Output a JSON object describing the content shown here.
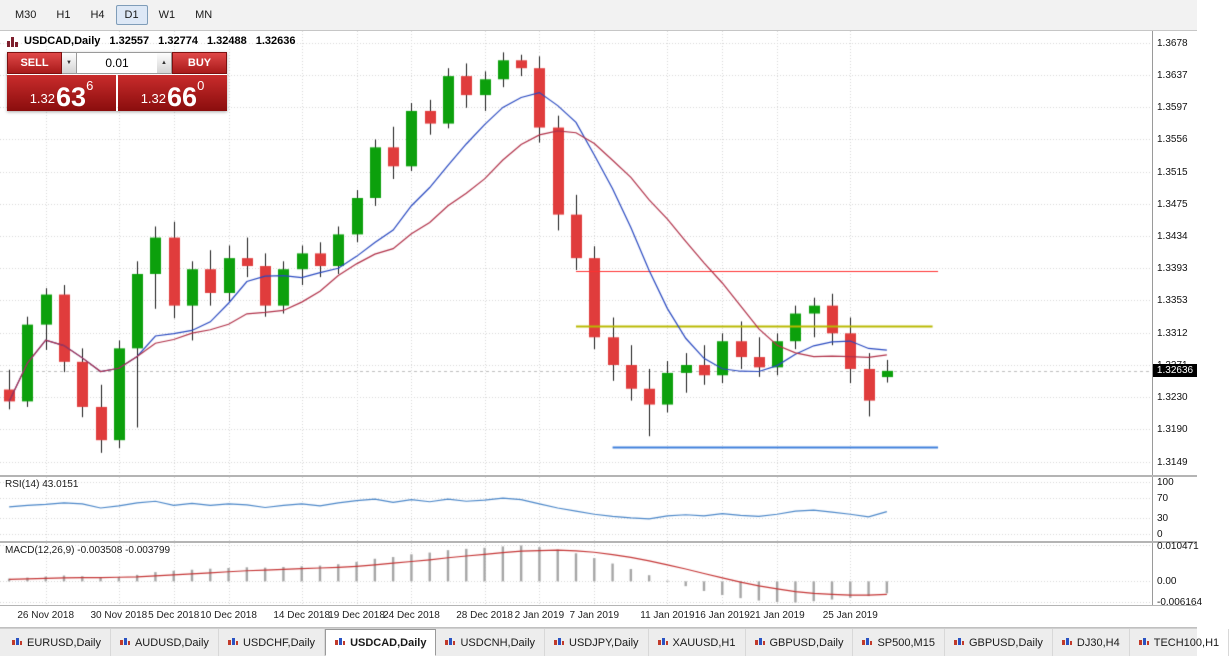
{
  "toolbar": {
    "timeframes": [
      "M30",
      "H1",
      "H4",
      "D1",
      "W1",
      "MN"
    ],
    "active": "D1"
  },
  "chart": {
    "symbol_title": "USDCAD,Daily",
    "ohlc": {
      "open": "1.32557",
      "high": "1.32774",
      "low": "1.32488",
      "close": "1.32636"
    },
    "trade_panel": {
      "sell_label": "SELL",
      "buy_label": "BUY",
      "volume": "0.01",
      "bid": {
        "prefix": "1.32",
        "pips": "63",
        "point": "6"
      },
      "ask": {
        "prefix": "1.32",
        "pips": "66",
        "point": "0"
      }
    }
  },
  "chart_data": {
    "type": "candlestick",
    "symbol": "USDCAD",
    "timeframe": "Daily",
    "right_gap_slots": 14,
    "current_price": 1.32636,
    "current_price_str": "1.32636",
    "colors": {
      "up": "#0ca00c",
      "down": "#e03c3c",
      "wick": "#1a1a1a",
      "grid": "#d6d6d6",
      "macd_hist": "#a6a6a6",
      "macd_signal": "#c43434"
    },
    "price_axis": {
      "max": 1.3693,
      "min": 1.3132,
      "ticks": [
        "1.3678",
        "1.3637",
        "1.3597",
        "1.3556",
        "1.3515",
        "1.3475",
        "1.3434",
        "1.3393",
        "1.3353",
        "1.3312",
        "1.3271",
        "1.3230",
        "1.3190",
        "1.3149"
      ]
    },
    "date_labels": [
      {
        "label": "26 Nov 2018",
        "index": 2
      },
      {
        "label": "30 Nov 2018",
        "index": 6
      },
      {
        "label": "5 Dec 2018",
        "index": 9
      },
      {
        "label": "10 Dec 2018",
        "index": 12
      },
      {
        "label": "14 Dec 2018",
        "index": 16
      },
      {
        "label": "19 Dec 2018",
        "index": 19
      },
      {
        "label": "24 Dec 2018",
        "index": 22
      },
      {
        "label": "28 Dec 2018",
        "index": 26
      },
      {
        "label": "2 Jan 2019",
        "index": 29
      },
      {
        "label": "7 Jan 2019",
        "index": 32
      },
      {
        "label": "11 Jan 2019",
        "index": 36
      },
      {
        "label": "16 Jan 2019",
        "index": 39
      },
      {
        "label": "21 Jan 2019",
        "index": 42
      },
      {
        "label": "25 Jan 2019",
        "index": 46
      }
    ],
    "candles": [
      [
        1.324,
        1.3265,
        1.3215,
        1.3225
      ],
      [
        1.3225,
        1.3332,
        1.3218,
        1.3322
      ],
      [
        1.3322,
        1.3368,
        1.329,
        1.336
      ],
      [
        1.336,
        1.3372,
        1.3262,
        1.3275
      ],
      [
        1.3275,
        1.3292,
        1.3205,
        1.3218
      ],
      [
        1.3218,
        1.3246,
        1.316,
        1.3176
      ],
      [
        1.3176,
        1.3302,
        1.3166,
        1.3292
      ],
      [
        1.3292,
        1.3402,
        1.3192,
        1.3386
      ],
      [
        1.3386,
        1.3446,
        1.3342,
        1.3432
      ],
      [
        1.3432,
        1.3452,
        1.333,
        1.3346
      ],
      [
        1.3346,
        1.3402,
        1.3302,
        1.3392
      ],
      [
        1.3392,
        1.3416,
        1.3346,
        1.3362
      ],
      [
        1.3362,
        1.3422,
        1.3352,
        1.3406
      ],
      [
        1.3406,
        1.3432,
        1.3382,
        1.3396
      ],
      [
        1.3396,
        1.3412,
        1.3332,
        1.3346
      ],
      [
        1.3346,
        1.3402,
        1.3336,
        1.3392
      ],
      [
        1.3392,
        1.3422,
        1.3372,
        1.3412
      ],
      [
        1.3412,
        1.3426,
        1.3382,
        1.3396
      ],
      [
        1.3396,
        1.3446,
        1.3386,
        1.3436
      ],
      [
        1.3436,
        1.3492,
        1.3426,
        1.3482
      ],
      [
        1.3482,
        1.3556,
        1.3472,
        1.3546
      ],
      [
        1.3546,
        1.3572,
        1.3506,
        1.3522
      ],
      [
        1.3522,
        1.3602,
        1.3516,
        1.3592
      ],
      [
        1.3592,
        1.3606,
        1.3562,
        1.3576
      ],
      [
        1.3576,
        1.3646,
        1.357,
        1.3636
      ],
      [
        1.3636,
        1.3652,
        1.3596,
        1.3612
      ],
      [
        1.3612,
        1.3642,
        1.3592,
        1.3632
      ],
      [
        1.3632,
        1.3666,
        1.3622,
        1.3656
      ],
      [
        1.3656,
        1.3663,
        1.3636,
        1.3646
      ],
      [
        1.3646,
        1.3661,
        1.3552,
        1.3571
      ],
      [
        1.3571,
        1.3586,
        1.3441,
        1.3461
      ],
      [
        1.3461,
        1.3486,
        1.3391,
        1.3406
      ],
      [
        1.3406,
        1.3421,
        1.3291,
        1.3306
      ],
      [
        1.3306,
        1.3331,
        1.3251,
        1.3271
      ],
      [
        1.3271,
        1.3296,
        1.3226,
        1.3241
      ],
      [
        1.3241,
        1.3266,
        1.3181,
        1.3221
      ],
      [
        1.3221,
        1.3276,
        1.3211,
        1.3261
      ],
      [
        1.3261,
        1.3286,
        1.3236,
        1.3271
      ],
      [
        1.3271,
        1.3296,
        1.3246,
        1.3258
      ],
      [
        1.3258,
        1.3311,
        1.3248,
        1.3301
      ],
      [
        1.3301,
        1.3326,
        1.3266,
        1.3281
      ],
      [
        1.3281,
        1.3306,
        1.3256,
        1.3268
      ],
      [
        1.3268,
        1.3311,
        1.3258,
        1.3301
      ],
      [
        1.3301,
        1.3346,
        1.3291,
        1.3336
      ],
      [
        1.3336,
        1.3356,
        1.3306,
        1.3346
      ],
      [
        1.3346,
        1.3361,
        1.3296,
        1.3311
      ],
      [
        1.3311,
        1.3331,
        1.3248,
        1.3266
      ],
      [
        1.3266,
        1.3286,
        1.3206,
        1.3226
      ],
      [
        1.32557,
        1.32774,
        1.32488,
        1.32636
      ]
    ],
    "overlays": {
      "ma_fast": {
        "period": 8,
        "color": "#2848c0"
      },
      "ma_slow": {
        "period": 13,
        "color": "#b03048"
      }
    },
    "hlines": [
      {
        "price": 1.339,
        "color": "#ff3030",
        "from": 31,
        "to": 50.8,
        "width": 1
      },
      {
        "price": 1.332,
        "color": "#b8b800",
        "from": 31,
        "to": 50.5,
        "width": 2
      },
      {
        "price": 1.3168,
        "color": "#3d7edb",
        "from": 33,
        "to": 50.8,
        "width": 2
      }
    ],
    "rsi": {
      "label": "RSI(14) 43.0151",
      "period": 14,
      "value": 43.0151,
      "color": "#4a86c8",
      "levels": [
        100,
        70,
        30,
        0
      ],
      "values": [
        52,
        55,
        57,
        60,
        58,
        50,
        54,
        60,
        63,
        55,
        59,
        55,
        58,
        56,
        51,
        55,
        58,
        54,
        60,
        64,
        67,
        61,
        66,
        62,
        67,
        63,
        65,
        69,
        66,
        58,
        50,
        44,
        38,
        34,
        31,
        29,
        35,
        37,
        35,
        39,
        36,
        34,
        38,
        44,
        46,
        42,
        38,
        33,
        43
      ]
    },
    "macd": {
      "label": "MACD(12,26,9) -0.003508 -0.003799",
      "macd_value": -0.003508,
      "signal_value": -0.003799,
      "axis": [
        "0.010471",
        "0.00",
        "-0.006164"
      ],
      "scale_max": 0.0112,
      "scale_min": -0.0069,
      "hist": [
        0.0008,
        0.0011,
        0.0014,
        0.0017,
        0.0015,
        0.0011,
        0.0013,
        0.0019,
        0.0027,
        0.0031,
        0.0034,
        0.0037,
        0.0039,
        0.0041,
        0.004,
        0.0042,
        0.0044,
        0.0046,
        0.005,
        0.0057,
        0.0066,
        0.0071,
        0.0079,
        0.0084,
        0.0091,
        0.0095,
        0.0098,
        0.0102,
        0.010471,
        0.01,
        0.0093,
        0.0082,
        0.0068,
        0.0052,
        0.0036,
        0.0018,
        0.0002,
        -0.0014,
        -0.0028,
        -0.004,
        -0.0049,
        -0.0056,
        -0.006,
        -0.006164,
        -0.0058,
        -0.0053,
        -0.0048,
        -0.0043,
        -0.003508
      ],
      "signal": [
        0.0006,
        0.0007,
        0.0009,
        0.001,
        0.0011,
        0.0011,
        0.0012,
        0.0013,
        0.0016,
        0.0019,
        0.0022,
        0.0025,
        0.0028,
        0.0031,
        0.0033,
        0.0035,
        0.0037,
        0.0039,
        0.0041,
        0.0044,
        0.0048,
        0.0053,
        0.0058,
        0.0063,
        0.0069,
        0.0074,
        0.0079,
        0.0084,
        0.0088,
        0.009,
        0.0091,
        0.0089,
        0.0085,
        0.0078,
        0.007,
        0.006,
        0.0048,
        0.0036,
        0.0023,
        0.001,
        -0.0002,
        -0.0013,
        -0.0022,
        -0.003,
        -0.0035,
        -0.0038,
        -0.004,
        -0.004,
        -0.003799
      ]
    }
  },
  "tabs": {
    "active_index": 3,
    "items": [
      "EURUSD,Daily",
      "AUDUSD,Daily",
      "USDCHF,Daily",
      "USDCAD,Daily",
      "USDCNH,Daily",
      "USDJPY,Daily",
      "XAUUSD,H1",
      "GBPUSD,Daily",
      "SP500,M15",
      "GBPUSD,Daily",
      "DJ30,H4",
      "TECH100,H1"
    ]
  }
}
